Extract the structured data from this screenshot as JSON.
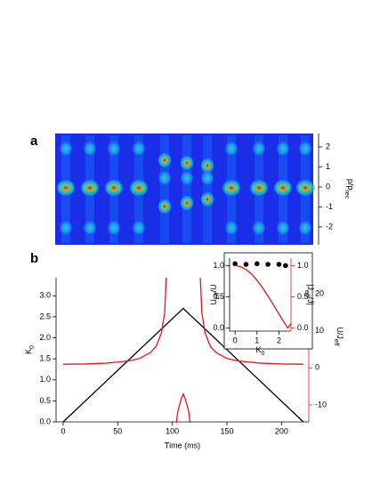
{
  "panel_a": {
    "label": "a",
    "ylabel": [
      {
        "text": "p/p",
        "sub": false
      },
      {
        "text": "rec",
        "sub": true
      }
    ],
    "ylim": [
      -2.89,
      2.67
    ],
    "yticks": [
      -2,
      -1,
      0,
      1,
      2
    ]
  },
  "chart_data": [
    {
      "type": "line",
      "label": "b",
      "xlabel": "Time (ms)",
      "ylabel": [
        {
          "text": "K",
          "sub": false
        },
        {
          "text": "0",
          "sub": true
        }
      ],
      "y2label": [
        {
          "text": "U/J",
          "sub": false
        },
        {
          "text": "eff",
          "sub": true
        }
      ],
      "xlim": [
        -6.5,
        225
      ],
      "xticks": [
        0,
        50,
        100,
        150,
        200
      ],
      "ylim": [
        0,
        3.43
      ],
      "yticks": [
        {
          "value": 0,
          "label": "0.0"
        },
        {
          "value": 0.5,
          "label": "0.5"
        },
        {
          "value": 1,
          "label": "1.0"
        },
        {
          "value": 1.5,
          "label": "1.5"
        },
        {
          "value": 2,
          "label": "2.0"
        },
        {
          "value": 2.5,
          "label": "2.5"
        },
        {
          "value": 3,
          "label": "3.0"
        }
      ],
      "y2lim": [
        -14.6,
        24.4
      ],
      "y2ticks": [
        -10,
        0,
        10,
        20
      ],
      "y2color": "#e8141a",
      "series": [
        {
          "color": "#000000",
          "x": [
            0,
            110,
            220
          ],
          "values": [
            0,
            2.7,
            0
          ]
        },
        {
          "color": "#e8141a",
          "axis": "y2",
          "x": [
            0,
            20,
            40,
            60,
            70,
            80,
            85,
            90,
            93,
            96,
            98,
            101,
            103,
            105,
            108,
            110,
            112,
            115,
            117,
            119,
            122,
            124,
            127,
            130,
            135,
            140,
            150,
            160,
            180,
            200,
            220
          ],
          "values": [
            1.0,
            1.064,
            1.3,
            1.9,
            2.56,
            4.17,
            5.75,
            9.43,
            14.9,
            35.7,
            null,
            -26,
            -16.4,
            -11.8,
            -8.5,
            -7.04,
            -8.5,
            -11.8,
            -16.4,
            -26,
            null,
            35.7,
            14.9,
            9.43,
            5.75,
            4.17,
            2.56,
            1.9,
            1.3,
            1.064,
            1.0
          ]
        }
      ]
    },
    {
      "type": "line",
      "inset": true,
      "xlabel": [
        {
          "text": "K",
          "sub": false
        },
        {
          "text": "0",
          "sub": true
        }
      ],
      "ylabel": [
        {
          "text": "U",
          "sub": false
        },
        {
          "text": "eff",
          "sub": true
        },
        {
          "text": "/U",
          "sub": false
        }
      ],
      "y2label": [
        {
          "text": "|J",
          "sub": false
        },
        {
          "text": "eff",
          "sub": true
        },
        {
          "text": "/J|",
          "sub": false
        }
      ],
      "xlim": [
        -0.25,
        2.55
      ],
      "xticks": [
        0,
        1,
        2
      ],
      "ylim": [
        -0.05,
        1.12
      ],
      "yticks": [
        {
          "value": 0,
          "label": "0.0"
        },
        {
          "value": 0.5,
          "label": "0.5"
        },
        {
          "value": 1,
          "label": "1.0"
        }
      ],
      "y2lim": [
        -0.05,
        1.12
      ],
      "y2ticks": [
        {
          "value": 0,
          "label": "0.0"
        },
        {
          "value": 0.5,
          "label": "0.5"
        },
        {
          "value": 1,
          "label": "1.0"
        }
      ],
      "y2color": "#e8141a",
      "series": [
        {
          "color": "#000000",
          "marker": "dot",
          "x": [
            0,
            0.5,
            1,
            1.5,
            2,
            2.3
          ],
          "values": [
            1.03,
            1.02,
            1.03,
            1.02,
            1.02,
            1.0
          ]
        },
        {
          "color": "#e8141a",
          "axis": "y2",
          "x": [
            0,
            0.25,
            0.5,
            0.75,
            1,
            1.25,
            1.5,
            1.75,
            2,
            2.2,
            2.405,
            2.5,
            2.6
          ],
          "values": [
            1,
            0.984,
            0.938,
            0.864,
            0.765,
            0.646,
            0.512,
            0.37,
            0.224,
            0.11,
            0,
            0.048,
            0.097
          ]
        }
      ]
    }
  ]
}
